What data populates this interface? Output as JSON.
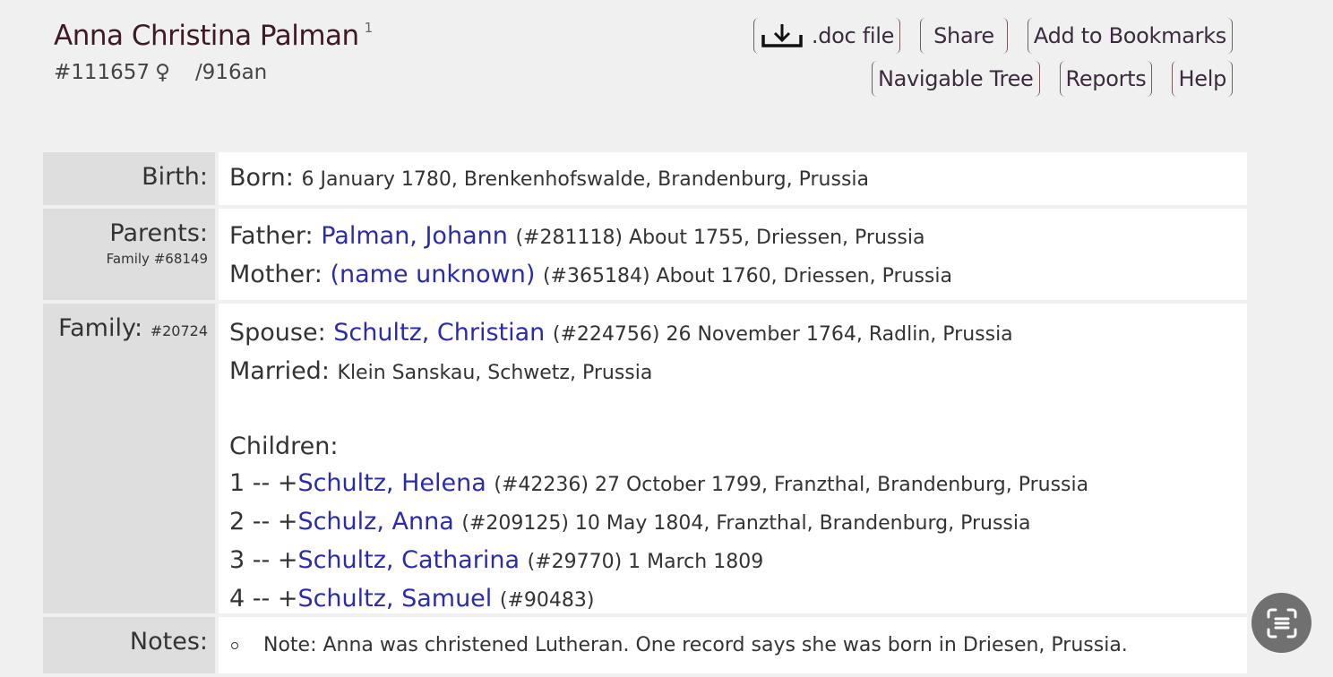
{
  "header": {
    "name": "Anna Christina Palman",
    "sup": "1",
    "id": "#111657",
    "gender_icon": "♀",
    "code": "/916an"
  },
  "buttons": {
    "doc": ".doc file",
    "share": "Share",
    "bookmarks": "Add to Bookmarks",
    "tree": "Navigable Tree",
    "reports": "Reports",
    "help": "Help"
  },
  "birth": {
    "label": "Birth:",
    "born": "Born:",
    "detail": "6 January 1780, Brenkenhofswalde, Brandenburg, Prussia"
  },
  "parents": {
    "label": "Parents:",
    "family": "Family #68149",
    "father_label": "Father:",
    "father": "Palman, Johann",
    "father_detail": "(#281118) About 1755, Driessen, Prussia",
    "mother_label": "Mother:",
    "mother": "(name unknown)",
    "mother_detail": "(#365184) About 1760, Driessen, Prussia"
  },
  "family": {
    "label": "Family:",
    "id": "#20724",
    "spouse_label": "Spouse:",
    "spouse": "Schultz, Christian",
    "spouse_detail": "(#224756) 26 November 1764, Radlin, Prussia",
    "married_label": "Married:",
    "married": "Klein Sanskau, Schwetz, Prussia",
    "children_label": "Children:",
    "children": [
      {
        "prefix": "1 -- +",
        "name": "Schultz, Helena",
        "detail": "(#42236) 27 October 1799, Franzthal, Brandenburg, Prussia"
      },
      {
        "prefix": "2 -- +",
        "name": "Schulz, Anna",
        "detail": "(#209125) 10 May 1804, Franzthal, Brandenburg, Prussia"
      },
      {
        "prefix": "3 -- +",
        "name": "Schultz, Catharina",
        "detail": "(#29770) 1 March 1809"
      },
      {
        "prefix": "4 -- +",
        "name": "Schultz, Samuel",
        "detail": "(#90483)"
      }
    ]
  },
  "notes": {
    "label": "Notes:",
    "text": "Note: Anna was christened Lutheran. One record says she was born in Driesen, Prussia."
  }
}
